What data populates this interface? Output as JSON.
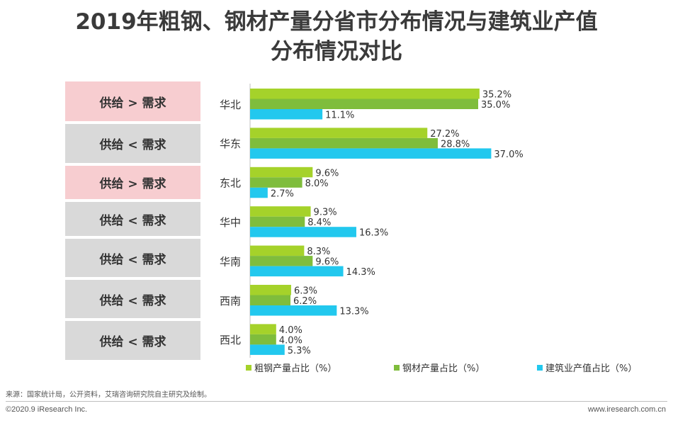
{
  "title_line1": "2019年粗钢、钢材产量分省市分布情况与建筑业产值",
  "title_line2": "分布情况对比",
  "colors": {
    "series1": "#a5d22a",
    "series2": "#7fbd3c",
    "series3": "#22c8ee",
    "over_box": "#f7cdd0",
    "under_box": "#d9d9d9"
  },
  "balance_labels": [
    "供给 > 需求",
    "供给 < 需求",
    "供给 > 需求",
    "供给 < 需求",
    "供给 < 需求",
    "供给 < 需求",
    "供给 < 需求"
  ],
  "chart_data": {
    "type": "bar",
    "orientation": "horizontal",
    "title": "2019年粗钢、钢材产量分省市分布情况与建筑业产值分布情况对比",
    "categories": [
      "华北",
      "华东",
      "东北",
      "华中",
      "华南",
      "西南",
      "西北"
    ],
    "series": [
      {
        "name": "粗钢产量占比（%）",
        "values": [
          35.2,
          27.2,
          9.6,
          9.3,
          8.3,
          6.3,
          4.0
        ]
      },
      {
        "name": "钢材产量占比（%）",
        "values": [
          35.0,
          28.8,
          8.0,
          8.4,
          9.6,
          6.2,
          4.0
        ]
      },
      {
        "name": "建筑业产值占比（%）",
        "values": [
          11.1,
          37.0,
          2.7,
          16.3,
          14.3,
          13.3,
          5.3
        ]
      }
    ],
    "xlim": [
      0,
      40
    ],
    "value_suffix": "%",
    "legend_position": "bottom"
  },
  "footer": {
    "source": "来源：国家统计局，公开资料，艾瑞咨询研究院自主研究及绘制。",
    "copyright": "©2020.9 iResearch Inc.",
    "website": "www.iresearch.com.cn"
  }
}
